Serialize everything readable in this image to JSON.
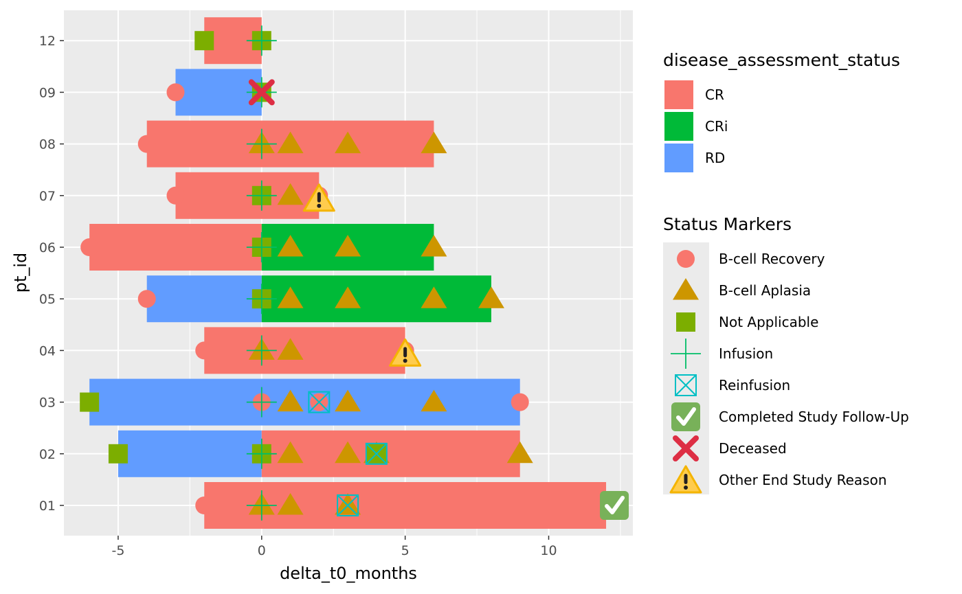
{
  "chart_data": {
    "type": "bar",
    "orientation": "horizontal",
    "swimmer_plot": true,
    "xlabel": "delta_t0_months",
    "ylabel": "pt_id",
    "xlim": [
      -6.5,
      12.5
    ],
    "x_ticks": [
      -5,
      0,
      5,
      10
    ],
    "x_tick_labels": [
      "-5",
      "0",
      "5",
      "10"
    ],
    "categories": [
      "01",
      "02",
      "03",
      "04",
      "05",
      "06",
      "07",
      "08",
      "09",
      "12"
    ],
    "grid": true,
    "legend_position": "right",
    "fill_legend": {
      "title": "disease_assessment_status",
      "entries": [
        {
          "label": "CR",
          "color": "#F8766D"
        },
        {
          "label": "CRi",
          "color": "#00BA38"
        },
        {
          "label": "RD",
          "color": "#619CFF"
        }
      ]
    },
    "bars": [
      {
        "pt_id": "01",
        "start": -2,
        "end": 12,
        "status": "CR"
      },
      {
        "pt_id": "02",
        "start": -5,
        "end": 0,
        "status": "RD"
      },
      {
        "pt_id": "02",
        "start": 0,
        "end": 9,
        "status": "CR"
      },
      {
        "pt_id": "03",
        "start": -6,
        "end": 9,
        "status": "RD"
      },
      {
        "pt_id": "04",
        "start": -2,
        "end": 5,
        "status": "CR"
      },
      {
        "pt_id": "05",
        "start": -4,
        "end": 0,
        "status": "RD"
      },
      {
        "pt_id": "05",
        "start": 0,
        "end": 8,
        "status": "CRi"
      },
      {
        "pt_id": "06",
        "start": -6,
        "end": 0,
        "status": "CR"
      },
      {
        "pt_id": "06",
        "start": 0,
        "end": 6,
        "status": "CRi"
      },
      {
        "pt_id": "07",
        "start": -3,
        "end": 2,
        "status": "CR"
      },
      {
        "pt_id": "08",
        "start": -4,
        "end": 6,
        "status": "CR"
      },
      {
        "pt_id": "09",
        "start": -3,
        "end": 0,
        "status": "RD"
      },
      {
        "pt_id": "12",
        "start": -2,
        "end": 0,
        "status": "CR"
      }
    ],
    "marker_legend": {
      "title": "Status Markers",
      "entries": [
        {
          "label": "B-cell Recovery",
          "shape": "circle",
          "color": "#F8766D"
        },
        {
          "label": "B-cell Aplasia",
          "shape": "triangle",
          "color": "#CD9600"
        },
        {
          "label": "Not Applicable",
          "shape": "square",
          "color": "#7CAE00"
        },
        {
          "label": "Infusion",
          "shape": "plus",
          "color": "#00BE67"
        },
        {
          "label": "Reinfusion",
          "shape": "boxed-x",
          "color": "#00BFC4"
        },
        {
          "label": "Completed Study Follow-Up",
          "shape": "check-emoji",
          "color": "#78B159"
        },
        {
          "label": "Deceased",
          "shape": "cross-emoji",
          "color": "#DD2E44"
        },
        {
          "label": "Other End Study Reason",
          "shape": "warning-emoji",
          "color": "#FFCC4D"
        }
      ]
    },
    "markers": [
      {
        "pt_id": "01",
        "x": -2,
        "type": "B-cell Recovery"
      },
      {
        "pt_id": "01",
        "x": 0,
        "type": "B-cell Aplasia"
      },
      {
        "pt_id": "01",
        "x": 1,
        "type": "B-cell Aplasia"
      },
      {
        "pt_id": "01",
        "x": 3,
        "type": "B-cell Aplasia"
      },
      {
        "pt_id": "01",
        "x": 0,
        "type": "Infusion"
      },
      {
        "pt_id": "01",
        "x": 3,
        "type": "Reinfusion"
      },
      {
        "pt_id": "01",
        "x": 12,
        "type": "Completed Study Follow-Up"
      },
      {
        "pt_id": "02",
        "x": -5,
        "type": "Not Applicable"
      },
      {
        "pt_id": "02",
        "x": 0,
        "type": "B-cell Recovery"
      },
      {
        "pt_id": "02",
        "x": 0,
        "type": "Not Applicable"
      },
      {
        "pt_id": "02",
        "x": 1,
        "type": "B-cell Aplasia"
      },
      {
        "pt_id": "02",
        "x": 3,
        "type": "B-cell Aplasia"
      },
      {
        "pt_id": "02",
        "x": 4,
        "type": "B-cell Aplasia"
      },
      {
        "pt_id": "02",
        "x": 4,
        "type": "Not Applicable"
      },
      {
        "pt_id": "02",
        "x": 9,
        "type": "B-cell Aplasia"
      },
      {
        "pt_id": "02",
        "x": 0,
        "type": "Infusion"
      },
      {
        "pt_id": "02",
        "x": 4,
        "type": "Reinfusion"
      },
      {
        "pt_id": "03",
        "x": -6,
        "type": "Not Applicable"
      },
      {
        "pt_id": "03",
        "x": 0,
        "type": "B-cell Recovery"
      },
      {
        "pt_id": "03",
        "x": 1,
        "type": "B-cell Aplasia"
      },
      {
        "pt_id": "03",
        "x": 2,
        "type": "B-cell Recovery"
      },
      {
        "pt_id": "03",
        "x": 3,
        "type": "B-cell Aplasia"
      },
      {
        "pt_id": "03",
        "x": 6,
        "type": "B-cell Aplasia"
      },
      {
        "pt_id": "03",
        "x": 9,
        "type": "B-cell Recovery"
      },
      {
        "pt_id": "03",
        "x": 0,
        "type": "Infusion"
      },
      {
        "pt_id": "03",
        "x": 2,
        "type": "Reinfusion"
      },
      {
        "pt_id": "04",
        "x": -2,
        "type": "B-cell Recovery"
      },
      {
        "pt_id": "04",
        "x": 0,
        "type": "B-cell Aplasia"
      },
      {
        "pt_id": "04",
        "x": 1,
        "type": "B-cell Aplasia"
      },
      {
        "pt_id": "04",
        "x": 5,
        "type": "B-cell Recovery"
      },
      {
        "pt_id": "04",
        "x": 0,
        "type": "Infusion"
      },
      {
        "pt_id": "04",
        "x": 5,
        "type": "Other End Study Reason"
      },
      {
        "pt_id": "05",
        "x": -4,
        "type": "B-cell Recovery"
      },
      {
        "pt_id": "05",
        "x": 0,
        "type": "Not Applicable"
      },
      {
        "pt_id": "05",
        "x": 1,
        "type": "B-cell Aplasia"
      },
      {
        "pt_id": "05",
        "x": 3,
        "type": "B-cell Aplasia"
      },
      {
        "pt_id": "05",
        "x": 6,
        "type": "B-cell Aplasia"
      },
      {
        "pt_id": "05",
        "x": 8,
        "type": "B-cell Aplasia"
      },
      {
        "pt_id": "05",
        "x": 0,
        "type": "Infusion"
      },
      {
        "pt_id": "06",
        "x": -6,
        "type": "B-cell Recovery"
      },
      {
        "pt_id": "06",
        "x": 0,
        "type": "Not Applicable"
      },
      {
        "pt_id": "06",
        "x": 1,
        "type": "B-cell Aplasia"
      },
      {
        "pt_id": "06",
        "x": 3,
        "type": "B-cell Aplasia"
      },
      {
        "pt_id": "06",
        "x": 6,
        "type": "B-cell Aplasia"
      },
      {
        "pt_id": "06",
        "x": 0,
        "type": "Infusion"
      },
      {
        "pt_id": "07",
        "x": -3,
        "type": "B-cell Recovery"
      },
      {
        "pt_id": "07",
        "x": 0,
        "type": "Not Applicable"
      },
      {
        "pt_id": "07",
        "x": 1,
        "type": "B-cell Aplasia"
      },
      {
        "pt_id": "07",
        "x": 2,
        "type": "B-cell Recovery"
      },
      {
        "pt_id": "07",
        "x": 0,
        "type": "Infusion"
      },
      {
        "pt_id": "07",
        "x": 2,
        "type": "Other End Study Reason"
      },
      {
        "pt_id": "08",
        "x": -4,
        "type": "B-cell Recovery"
      },
      {
        "pt_id": "08",
        "x": 0,
        "type": "B-cell Aplasia"
      },
      {
        "pt_id": "08",
        "x": 1,
        "type": "B-cell Aplasia"
      },
      {
        "pt_id": "08",
        "x": 3,
        "type": "B-cell Aplasia"
      },
      {
        "pt_id": "08",
        "x": 6,
        "type": "B-cell Aplasia"
      },
      {
        "pt_id": "08",
        "x": 0,
        "type": "Infusion"
      },
      {
        "pt_id": "09",
        "x": -3,
        "type": "B-cell Recovery"
      },
      {
        "pt_id": "09",
        "x": 0,
        "type": "Not Applicable"
      },
      {
        "pt_id": "09",
        "x": 0,
        "type": "Infusion"
      },
      {
        "pt_id": "09",
        "x": 0,
        "type": "Deceased"
      },
      {
        "pt_id": "12",
        "x": -2,
        "type": "Not Applicable"
      },
      {
        "pt_id": "12",
        "x": 0,
        "type": "Not Applicable"
      },
      {
        "pt_id": "12",
        "x": 0,
        "type": "Infusion"
      }
    ]
  }
}
